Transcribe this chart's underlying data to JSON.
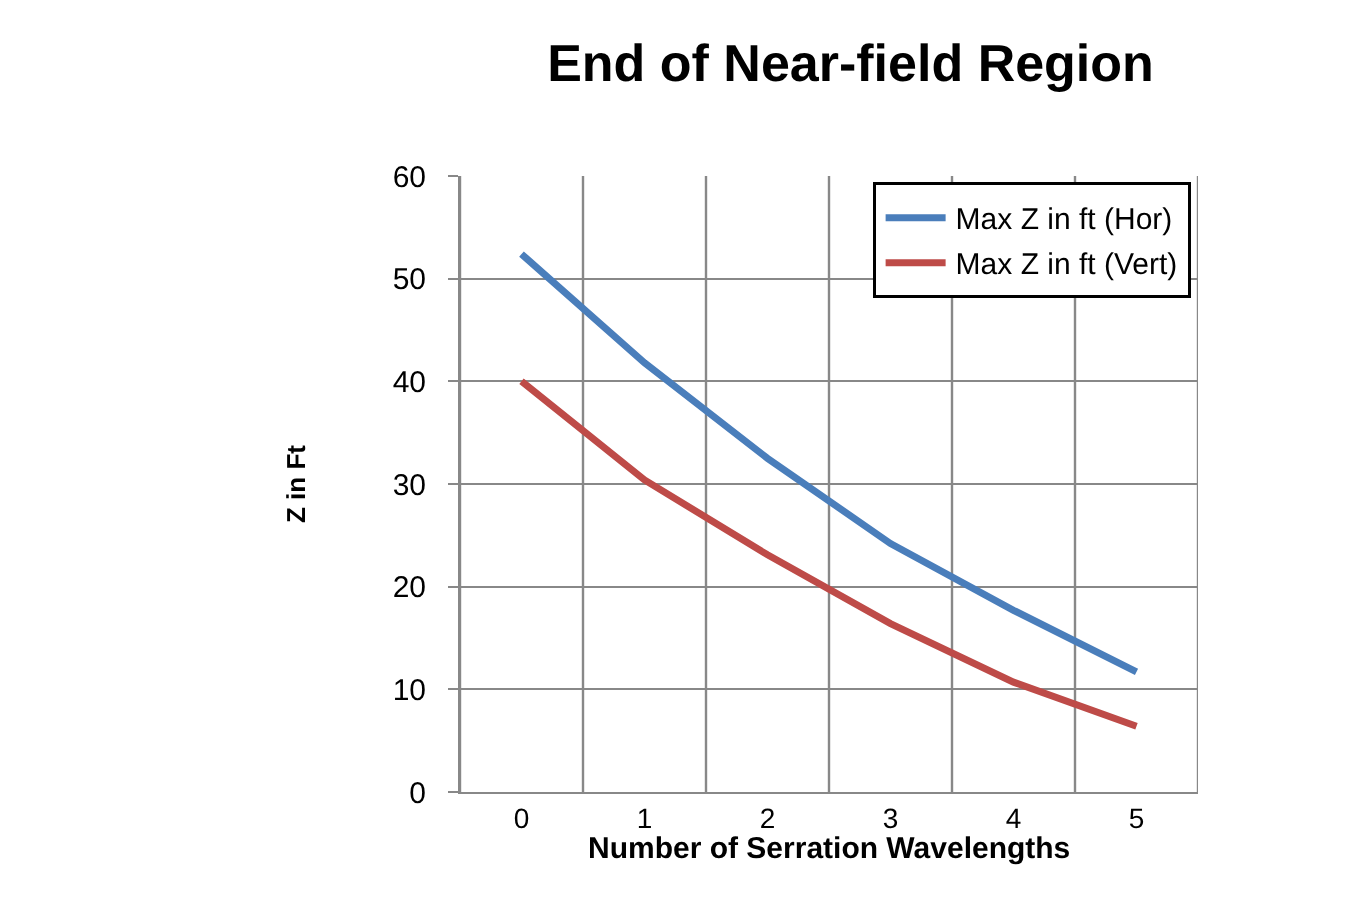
{
  "chart_data": {
    "type": "line",
    "title": "End of Near-field Region",
    "xlabel": "Number of Serration Wavelengths",
    "ylabel": "Z in Ft",
    "categories": [
      "0",
      "1",
      "2",
      "3",
      "4",
      "5"
    ],
    "series": [
      {
        "name": "Max Z in ft (Hor)",
        "color": "#4a7ebb",
        "values": [
          52.4,
          41.8,
          32.5,
          24.2,
          17.7,
          11.7
        ]
      },
      {
        "name": "Max Z in ft (Vert)",
        "color": "#be4b48",
        "values": [
          40.0,
          30.4,
          23.1,
          16.4,
          10.7,
          6.4
        ]
      }
    ],
    "ylim": [
      0,
      60
    ],
    "yticks": [
      0,
      10,
      20,
      30,
      40,
      50,
      60
    ],
    "grid": true,
    "legend": "top right",
    "marker": "none",
    "line_style": "solid"
  }
}
